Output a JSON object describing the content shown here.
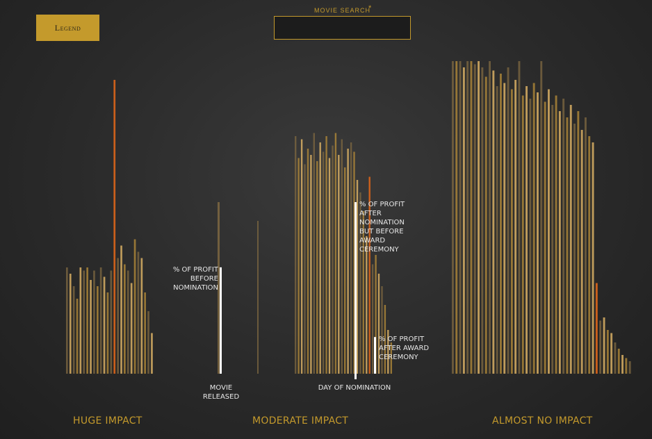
{
  "header": {
    "legend_label": "Legend",
    "search_label": "MOVIE SEARCH",
    "search_star": "*",
    "search_value": ""
  },
  "annotations": {
    "before_nomination": "% OF PROFIT BEFORE NOMINATION",
    "after_nomination": "% OF PROFIT AFTER NOMINATION BUT BEFORE AWARD CEREMONY",
    "after_award": "% OF PROFIT AFTER AWARD CEREMONY",
    "movie_released": "MOVIE RELEASED",
    "day_of_nomination": "DAY OF NOMINATION"
  },
  "groups": {
    "huge": "HUGE IMPACT",
    "moderate": "MODERATE IMPACT",
    "almost_none": "ALMOST NO IMPACT"
  },
  "colors": {
    "gold": "#c49a2c",
    "bar_dark": "#7a6540",
    "bar_mid": "#b08838",
    "bar_light": "#e4b868",
    "highlight": "#d4621a",
    "white": "#ffffff"
  },
  "chart_data": {
    "type": "bar",
    "title": "",
    "ylabel": "",
    "ylim": [
      0,
      100
    ],
    "groups": [
      {
        "name": "HUGE IMPACT",
        "bars": [
          {
            "tone": 0,
            "value": 34
          },
          {
            "tone": 2,
            "value": 32
          },
          {
            "tone": 0,
            "value": 28
          },
          {
            "tone": 1,
            "value": 24
          },
          {
            "tone": 2,
            "value": 34
          },
          {
            "tone": 0,
            "value": 33
          },
          {
            "tone": 1,
            "value": 34
          },
          {
            "tone": 2,
            "value": 30
          },
          {
            "tone": 0,
            "value": 33
          },
          {
            "tone": 1,
            "value": 28
          },
          {
            "tone": 0,
            "value": 34
          },
          {
            "tone": 2,
            "value": 31
          },
          {
            "tone": 1,
            "value": 26
          },
          {
            "tone": 0,
            "value": 33
          },
          {
            "tone": 3,
            "value": 94
          },
          {
            "tone": 0,
            "value": 37
          },
          {
            "tone": 2,
            "value": 41
          },
          {
            "tone": 1,
            "value": 35
          },
          {
            "tone": 0,
            "value": 33
          },
          {
            "tone": 2,
            "value": 29
          },
          {
            "tone": 1,
            "value": 43
          },
          {
            "tone": 0,
            "value": 39
          },
          {
            "tone": 2,
            "value": 37
          },
          {
            "tone": 1,
            "value": 26
          },
          {
            "tone": 0,
            "value": 20
          },
          {
            "tone": 2,
            "value": 13
          }
        ]
      },
      {
        "name": "MODERATE IMPACT",
        "bars": [
          {
            "tone": 0,
            "value": 76
          },
          {
            "tone": 1,
            "value": 69
          },
          {
            "tone": 2,
            "value": 75
          },
          {
            "tone": 0,
            "value": 67
          },
          {
            "tone": 1,
            "value": 72
          },
          {
            "tone": 2,
            "value": 70
          },
          {
            "tone": 0,
            "value": 77
          },
          {
            "tone": 1,
            "value": 68
          },
          {
            "tone": 2,
            "value": 74
          },
          {
            "tone": 0,
            "value": 71
          },
          {
            "tone": 1,
            "value": 76
          },
          {
            "tone": 2,
            "value": 69
          },
          {
            "tone": 0,
            "value": 73
          },
          {
            "tone": 1,
            "value": 77
          },
          {
            "tone": 2,
            "value": 70
          },
          {
            "tone": 0,
            "value": 75
          },
          {
            "tone": 1,
            "value": 66
          },
          {
            "tone": 2,
            "value": 72
          },
          {
            "tone": 0,
            "value": 74
          },
          {
            "tone": 1,
            "value": 71
          },
          {
            "tone": 2,
            "value": 62
          },
          {
            "tone": 0,
            "value": 58
          },
          {
            "tone": 1,
            "value": 52
          },
          {
            "tone": 2,
            "value": 44
          },
          {
            "tone": 3,
            "value": 63
          },
          {
            "tone": 0,
            "value": 35
          },
          {
            "tone": 1,
            "value": 38
          },
          {
            "tone": 2,
            "value": 32
          },
          {
            "tone": 0,
            "value": 28
          },
          {
            "tone": 1,
            "value": 22
          },
          {
            "tone": 2,
            "value": 14
          },
          {
            "tone": 1,
            "value": 10
          }
        ]
      },
      {
        "name": "ALMOST NO IMPACT",
        "bars": [
          {
            "tone": 0,
            "value": 100
          },
          {
            "tone": 1,
            "value": 100
          },
          {
            "tone": 0,
            "value": 100
          },
          {
            "tone": 2,
            "value": 98
          },
          {
            "tone": 0,
            "value": 100
          },
          {
            "tone": 1,
            "value": 100
          },
          {
            "tone": 0,
            "value": 99
          },
          {
            "tone": 2,
            "value": 100
          },
          {
            "tone": 0,
            "value": 98
          },
          {
            "tone": 1,
            "value": 95
          },
          {
            "tone": 0,
            "value": 100
          },
          {
            "tone": 2,
            "value": 97
          },
          {
            "tone": 0,
            "value": 92
          },
          {
            "tone": 1,
            "value": 96
          },
          {
            "tone": 2,
            "value": 93
          },
          {
            "tone": 0,
            "value": 98
          },
          {
            "tone": 1,
            "value": 91
          },
          {
            "tone": 2,
            "value": 94
          },
          {
            "tone": 0,
            "value": 100
          },
          {
            "tone": 1,
            "value": 89
          },
          {
            "tone": 2,
            "value": 92
          },
          {
            "tone": 0,
            "value": 88
          },
          {
            "tone": 1,
            "value": 93
          },
          {
            "tone": 2,
            "value": 90
          },
          {
            "tone": 0,
            "value": 100
          },
          {
            "tone": 1,
            "value": 87
          },
          {
            "tone": 2,
            "value": 91
          },
          {
            "tone": 0,
            "value": 86
          },
          {
            "tone": 1,
            "value": 89
          },
          {
            "tone": 2,
            "value": 84
          },
          {
            "tone": 0,
            "value": 88
          },
          {
            "tone": 1,
            "value": 82
          },
          {
            "tone": 2,
            "value": 86
          },
          {
            "tone": 0,
            "value": 80
          },
          {
            "tone": 1,
            "value": 84
          },
          {
            "tone": 2,
            "value": 78
          },
          {
            "tone": 0,
            "value": 82
          },
          {
            "tone": 1,
            "value": 76
          },
          {
            "tone": 2,
            "value": 74
          },
          {
            "tone": 3,
            "value": 29
          },
          {
            "tone": 0,
            "value": 17
          },
          {
            "tone": 2,
            "value": 18
          },
          {
            "tone": 1,
            "value": 14
          },
          {
            "tone": 2,
            "value": 13
          },
          {
            "tone": 0,
            "value": 10
          },
          {
            "tone": 1,
            "value": 8
          },
          {
            "tone": 2,
            "value": 6
          },
          {
            "tone": 1,
            "value": 5
          },
          {
            "tone": 0,
            "value": 4
          }
        ]
      }
    ],
    "example_bar": {
      "before_nomination": 62,
      "after_nomination": 100,
      "after_award": 12
    }
  }
}
